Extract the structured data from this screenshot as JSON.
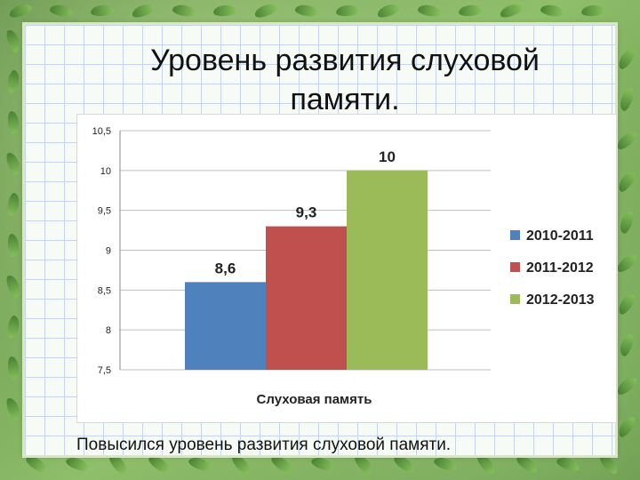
{
  "slide": {
    "title": "Уровень развития слуховой памяти.",
    "caption": "Повысился уровень развития слуховой памяти."
  },
  "colors": {
    "series_1": "#4f81bd",
    "series_2": "#c0504d",
    "series_3": "#9bbb59"
  },
  "chart_data": {
    "type": "bar",
    "categories": [
      "Слуховая память"
    ],
    "series": [
      {
        "name": "2010-2011",
        "values": [
          8.6
        ]
      },
      {
        "name": "2011-2012",
        "values": [
          9.3
        ]
      },
      {
        "name": "2012-2013",
        "values": [
          10
        ]
      }
    ],
    "data_labels": [
      "8,6",
      "9,3",
      "10"
    ],
    "y_ticks": [
      "7,5",
      "8",
      "8,5",
      "9",
      "9,5",
      "10",
      "10,5"
    ],
    "ylim": [
      7.5,
      10.5
    ],
    "xlabel": "Слуховая память",
    "ylabel": "",
    "title": "",
    "grid": true,
    "legend_position": "right"
  }
}
